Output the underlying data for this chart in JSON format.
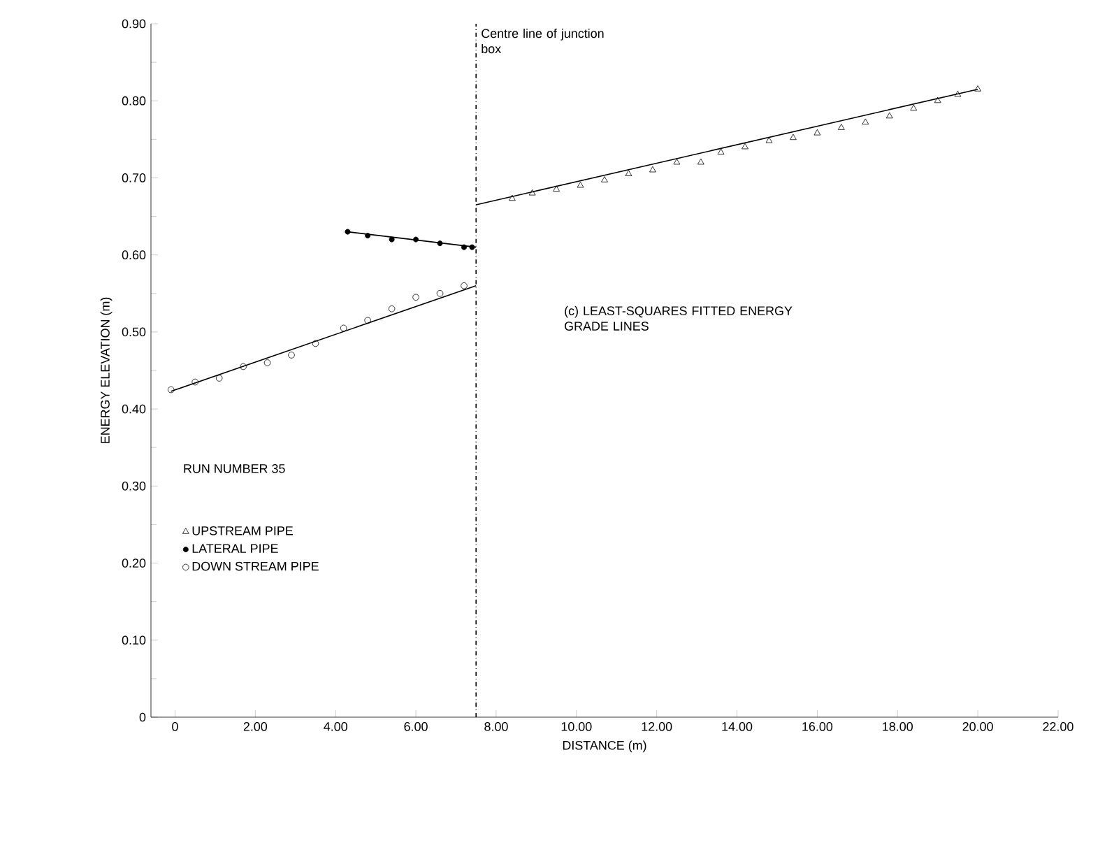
{
  "chart_data": {
    "type": "scatter",
    "xlabel": "DISTANCE (m)",
    "ylabel": "ENERGY ELEVATION (m)",
    "legend_title": "RUN NUMBER 35",
    "legend": "bottom left",
    "grid": false,
    "xlim": [
      -0.6,
      22
    ],
    "ylim": [
      0,
      0.9
    ],
    "xticks": [
      0,
      {
        "value": 2,
        "label": "2.00"
      },
      {
        "value": 4,
        "label": "4.00"
      },
      {
        "value": 6,
        "label": "6.00"
      },
      {
        "value": 8,
        "label": "8.00"
      },
      {
        "value": 10,
        "label": "10.00"
      },
      {
        "value": 12,
        "label": "12.00"
      },
      {
        "value": 14,
        "label": "14.00"
      },
      {
        "value": 16,
        "label": "16.00"
      },
      {
        "value": 18,
        "label": "18.00"
      },
      {
        "value": 20,
        "label": "20.00"
      },
      {
        "value": 22,
        "label": "22.00"
      }
    ],
    "yticks": [
      0,
      {
        "value": 0.1,
        "label": "0.10"
      },
      {
        "value": 0.2,
        "label": "0.20"
      },
      {
        "value": 0.3,
        "label": "0.30"
      },
      {
        "value": 0.4,
        "label": "0.40"
      },
      {
        "value": 0.5,
        "label": "0.50"
      },
      {
        "value": 0.6,
        "label": "0.60"
      },
      {
        "value": 0.7,
        "label": "0.70"
      },
      {
        "value": 0.8,
        "label": "0.80"
      },
      {
        "value": 0.9,
        "label": "0.90"
      }
    ],
    "series": [
      {
        "name": "UPSTREAM PIPE",
        "color": "#000000",
        "marker": "triangle",
        "x": [
          8.4,
          8.9,
          9.5,
          10.1,
          10.7,
          11.3,
          11.9,
          12.5,
          13.1,
          13.6,
          14.2,
          14.8,
          15.4,
          16.0,
          16.6,
          17.2,
          17.8,
          18.4,
          19.0,
          19.5,
          20.0
        ],
        "values": [
          0.673,
          0.68,
          0.685,
          0.69,
          0.697,
          0.705,
          0.71,
          0.72,
          0.72,
          0.733,
          0.74,
          0.748,
          0.752,
          0.758,
          0.765,
          0.772,
          0.78,
          0.79,
          0.8,
          0.808,
          0.815
        ]
      },
      {
        "name": "LATERAL PIPE",
        "color": "#000000",
        "marker": "dot",
        "x": [
          4.3,
          4.8,
          5.4,
          6.0,
          6.6,
          7.2,
          7.4
        ],
        "values": [
          0.63,
          0.625,
          0.62,
          0.62,
          0.615,
          0.61,
          0.61
        ]
      },
      {
        "name": "DOWN STREAM PIPE",
        "color": "#000000",
        "marker": "circle",
        "x": [
          -0.1,
          0.5,
          1.1,
          1.7,
          2.3,
          2.9,
          3.5,
          4.2,
          4.8,
          5.4,
          6.0,
          6.6,
          7.2
        ],
        "values": [
          0.425,
          0.435,
          0.44,
          0.455,
          0.46,
          0.47,
          0.485,
          0.505,
          0.515,
          0.53,
          0.545,
          0.55,
          0.56
        ]
      },
      {
        "type": "line",
        "color": "#000000",
        "marker": "none",
        "x": [
          -0.1,
          7.5
        ],
        "values": [
          0.423,
          0.56
        ]
      },
      {
        "type": "line",
        "color": "#000000",
        "marker": "none",
        "x": [
          4.3,
          7.5
        ],
        "values": [
          0.63,
          0.61
        ]
      },
      {
        "type": "line",
        "color": "#000000",
        "marker": "none",
        "x": [
          7.5,
          20.0
        ],
        "values": [
          0.665,
          0.815
        ]
      }
    ],
    "ref_lines": [
      {
        "axis": "x",
        "value": 7.5,
        "label": "Centre line of junction box",
        "line_style": "dashdot",
        "color": "#000000"
      }
    ],
    "annotations": [
      "(c) LEAST-SQUARES FITTED ENERGY GRADE LINES"
    ]
  }
}
